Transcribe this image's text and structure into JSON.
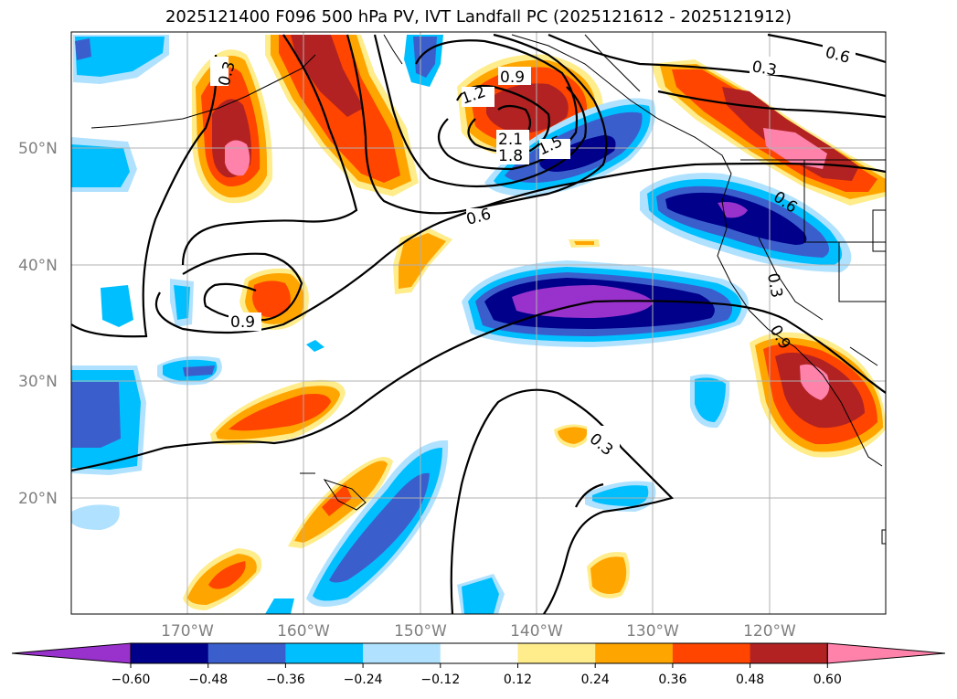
{
  "title": "2025121400 F096 500 hPa PV, IVT Landfall PC (2025121612 - 2025121912)",
  "map": {
    "lat_labels": [
      "50°N",
      "40°N",
      "30°N",
      "20°N"
    ],
    "lon_labels": [
      "170°W",
      "160°W",
      "150°W",
      "140°W",
      "130°W",
      "120°W"
    ],
    "contour_labels": [
      "0.3",
      "0.6",
      "0.9",
      "1.2",
      "1.5",
      "1.8",
      "2.1",
      "0.6",
      "0.9",
      "0.3",
      "0.6",
      "0.3",
      "0.9",
      "0.3"
    ],
    "colors": {
      "purple": "#9932cc",
      "navy": "#00008b",
      "royal": "#3a5fcd",
      "cyan": "#00bfff",
      "lightblue": "#b0e2ff",
      "white": "#ffffff",
      "yellow": "#ffec8b",
      "orange": "#ffa500",
      "redorange": "#ff4500",
      "firebrick": "#b22222",
      "pink": "#ff82ab"
    }
  },
  "colorbar": {
    "ticks": [
      "−0.60",
      "−0.48",
      "−0.36",
      "−0.24",
      "−0.12",
      "0.12",
      "0.24",
      "0.36",
      "0.48",
      "0.60"
    ],
    "bins": [
      "purple",
      "navy",
      "royal",
      "cyan",
      "lightblue",
      "white",
      "yellow",
      "orange",
      "redorange",
      "firebrick",
      "pink"
    ]
  }
}
